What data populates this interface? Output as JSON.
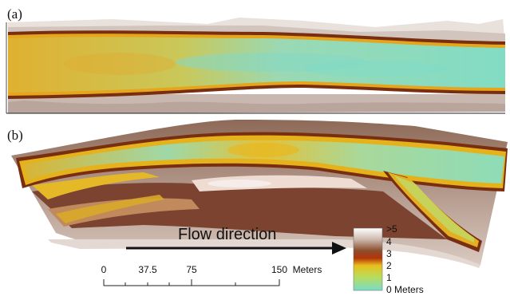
{
  "panels": {
    "a_label": "(a)",
    "b_label": "(b)"
  },
  "arrow": {
    "text": "Flow direction"
  },
  "scale_bar": {
    "ticks": [
      "0",
      "37.5",
      "75",
      "150"
    ],
    "unit": "Meters"
  },
  "legend": {
    "labels": [
      ">5",
      "4",
      "3",
      "2",
      "1",
      "0"
    ],
    "unit": "Meters",
    "colors": [
      "#ffffff",
      "#c9b6ab",
      "#8a4a2a",
      "#b5320a",
      "#e8c020",
      "#c8d830",
      "#7edcc0"
    ]
  }
}
